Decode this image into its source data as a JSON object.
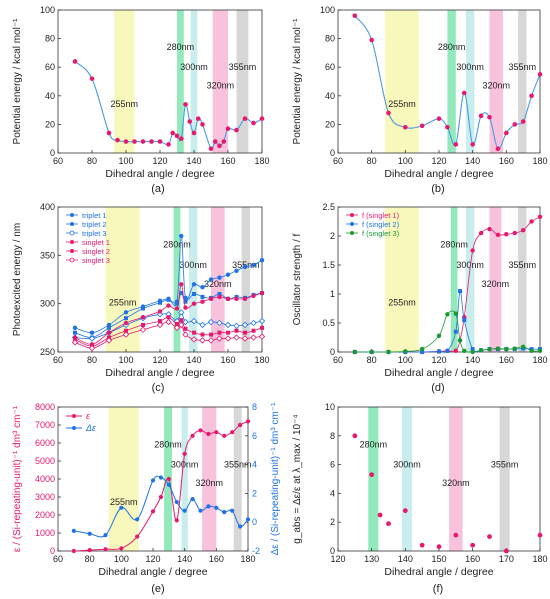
{
  "figure_labels": [
    "(a)",
    "(b)",
    "(c)",
    "(d)",
    "(e)",
    "(f)"
  ],
  "colors": {
    "band_255": "#f7f7b0",
    "band_280": "#7fe6b0",
    "band_300": "#bfe9ea",
    "band_320": "#f7b6d6",
    "band_355": "#d0d0d0",
    "blue": "#1f73e6",
    "magenta": "#e6196e",
    "green": "#1a9933",
    "cyan_curve": "#4a9ae6"
  },
  "chart_data": [
    {
      "id": "a",
      "type": "line",
      "xlabel": "Dihedral angle / degree",
      "ylabel": "Potential energy / kcal mol⁻¹",
      "xlim": [
        60,
        180
      ],
      "ylim": [
        0,
        100
      ],
      "xticks": [
        60,
        80,
        100,
        120,
        140,
        160,
        180
      ],
      "yticks": [
        0,
        20,
        40,
        60,
        80,
        100
      ],
      "bands": [
        {
          "label": "255nm",
          "x0": 93,
          "x1": 105
        },
        {
          "label": "280nm",
          "x0": 130,
          "x1": 134
        },
        {
          "label": "300nm",
          "x0": 138,
          "x1": 142
        },
        {
          "label": "320nm",
          "x0": 151,
          "x1": 160
        },
        {
          "label": "355nm",
          "x0": 165,
          "x1": 172
        }
      ],
      "series": [
        {
          "x": [
            70,
            80,
            90,
            95,
            100,
            105,
            110,
            115,
            120,
            125,
            127.5,
            130,
            132.5,
            135,
            137.5,
            140,
            142.5,
            145,
            150,
            152.5,
            155,
            157.5,
            160,
            165,
            170,
            175,
            180
          ],
          "y": [
            64,
            52,
            14,
            9,
            8,
            8,
            8,
            8,
            8,
            6,
            14,
            12,
            10,
            34,
            22,
            14,
            24,
            20,
            3,
            8,
            5,
            8,
            17,
            16,
            24,
            21,
            24
          ]
        }
      ]
    },
    {
      "id": "b",
      "type": "line",
      "xlabel": "Dihedral angle / degree",
      "ylabel": "Potential energy / kcal mol⁻¹",
      "xlim": [
        60,
        180
      ],
      "ylim": [
        0,
        100
      ],
      "xticks": [
        60,
        80,
        100,
        120,
        140,
        160,
        180
      ],
      "yticks": [
        0,
        20,
        40,
        60,
        80,
        100
      ],
      "bands": [
        {
          "label": "255nm",
          "x0": 88,
          "x1": 108
        },
        {
          "label": "280nm",
          "x0": 125,
          "x1": 130
        },
        {
          "label": "300nm",
          "x0": 136,
          "x1": 141
        },
        {
          "label": "320nm",
          "x0": 150,
          "x1": 158
        },
        {
          "label": "355nm",
          "x0": 167,
          "x1": 172
        }
      ],
      "series": [
        {
          "x": [
            70,
            80,
            90,
            100,
            110,
            120,
            125,
            130,
            135,
            140,
            145,
            150,
            155,
            160,
            165,
            170,
            175,
            180
          ],
          "y": [
            96,
            79,
            28,
            18,
            19,
            24,
            18,
            6,
            42,
            6,
            26,
            25,
            3,
            14,
            20,
            22,
            40,
            55
          ]
        }
      ]
    },
    {
      "id": "c",
      "type": "scatter",
      "xlabel": "Dihedral angle / degree",
      "ylabel": "Photoexcited energy / nm",
      "xlim": [
        60,
        180
      ],
      "ylim": [
        250,
        400
      ],
      "xticks": [
        60,
        80,
        100,
        120,
        140,
        160,
        180
      ],
      "yticks": [
        250,
        300,
        350,
        400
      ],
      "bands": [
        {
          "label": "255nm",
          "x0": 88,
          "x1": 108
        },
        {
          "label": "280nm",
          "x0": 128,
          "x1": 132
        },
        {
          "label": "300nm",
          "x0": 137,
          "x1": 142
        },
        {
          "label": "320nm",
          "x0": 150,
          "x1": 158
        },
        {
          "label": "355nm",
          "x0": 168,
          "x1": 173
        }
      ],
      "legend": "top-left",
      "x": [
        70,
        80,
        90,
        100,
        110,
        120,
        125,
        130,
        132.5,
        135,
        140,
        145,
        150,
        155,
        160,
        165,
        170,
        175,
        180
      ],
      "series": [
        {
          "name": "triplet 1",
          "style": "filled",
          "color": "blue",
          "values": [
            275,
            270,
            278,
            291,
            297,
            303,
            305,
            302,
            370,
            306,
            320,
            317,
            325,
            327,
            330,
            334,
            338,
            340,
            345
          ]
        },
        {
          "name": "triplet 2",
          "style": "filled",
          "color": "blue",
          "values": [
            270,
            265,
            275,
            285,
            295,
            301,
            304,
            300,
            311,
            302,
            310,
            307,
            306,
            310,
            305,
            307,
            306,
            309,
            311
          ]
        },
        {
          "name": "triplet 3",
          "style": "open",
          "color": "blue",
          "values": [
            265,
            264,
            270,
            278,
            285,
            289,
            289,
            282,
            291,
            281,
            282,
            278,
            281,
            280,
            278,
            277,
            278,
            280,
            282
          ]
        },
        {
          "name": "singlet 1",
          "style": "filled",
          "color": "magenta",
          "values": [
            265,
            258,
            270,
            280,
            286,
            292,
            298,
            295,
            320,
            296,
            300,
            302,
            305,
            307,
            305,
            305,
            305,
            308,
            311
          ]
        },
        {
          "name": "singlet 2",
          "style": "filled",
          "color": "magenta",
          "values": [
            263,
            256,
            265,
            272,
            278,
            282,
            286,
            279,
            283,
            274,
            270,
            268,
            268,
            270,
            270,
            272,
            270,
            272,
            275
          ]
        },
        {
          "name": "singlet 3",
          "style": "open",
          "color": "magenta",
          "values": [
            260,
            254,
            262,
            268,
            273,
            278,
            281,
            275,
            278,
            268,
            263,
            262,
            262,
            264,
            264,
            265,
            264,
            265,
            266
          ]
        }
      ]
    },
    {
      "id": "d",
      "type": "line",
      "xlabel": "Dihedral angle / degree",
      "ylabel": "Oscillator strength / f",
      "xlim": [
        60,
        180
      ],
      "ylim": [
        0,
        2.5
      ],
      "xticks": [
        60,
        80,
        100,
        120,
        140,
        160,
        180
      ],
      "yticks": [
        0,
        0.5,
        1,
        1.5,
        2,
        2.5
      ],
      "bands": [
        {
          "label": "255nm",
          "x0": 88,
          "x1": 108
        },
        {
          "label": "280nm",
          "x0": 127,
          "x1": 131
        },
        {
          "label": "300nm",
          "x0": 136,
          "x1": 141
        },
        {
          "label": "320nm",
          "x0": 150,
          "x1": 157
        },
        {
          "label": "355nm",
          "x0": 167,
          "x1": 172
        }
      ],
      "legend": "top-left",
      "x": [
        70,
        80,
        90,
        100,
        110,
        120,
        125,
        130,
        132.5,
        135,
        140,
        145,
        150,
        155,
        160,
        165,
        170,
        175,
        180
      ],
      "series": [
        {
          "name": "f (singlet 1)",
          "color": "magenta",
          "values": [
            0,
            0,
            0,
            0,
            0,
            0.01,
            0.02,
            0.02,
            0.2,
            0.6,
            1.75,
            2.05,
            2.12,
            2.02,
            2.03,
            2.05,
            2.1,
            2.25,
            2.33
          ]
        },
        {
          "name": "f (singlet 2)",
          "color": "blue",
          "values": [
            0,
            0,
            0,
            0,
            0,
            0.01,
            0.02,
            0.35,
            1.05,
            0.55,
            0.05,
            0.03,
            0.05,
            0.05,
            0.05,
            0.05,
            0.06,
            0.05,
            0.05
          ]
        },
        {
          "name": "f (singlet 3)",
          "color": "green",
          "values": [
            0,
            0,
            0,
            0.01,
            0.05,
            0.28,
            0.65,
            0.66,
            0.2,
            0.02,
            0,
            0.03,
            0.05,
            0.06,
            0.05,
            0.06,
            0.09,
            0.02,
            0.02
          ]
        }
      ]
    },
    {
      "id": "e",
      "type": "line",
      "xlabel": "Dihedral angle / degree",
      "ylabel": "ε / (Si-repeating-unit)⁻¹ dm³ cm⁻¹",
      "ylabel_right": "Δε / (Si-repeating-unit)⁻¹ dm³ cm⁻¹",
      "xlim": [
        60,
        180
      ],
      "ylim": [
        0,
        8000
      ],
      "ylim_right": [
        -2,
        8
      ],
      "xticks": [
        60,
        80,
        100,
        120,
        140,
        160,
        180
      ],
      "yticks": [
        0,
        1000,
        2000,
        3000,
        4000,
        5000,
        6000,
        7000,
        8000
      ],
      "yticks_right": [
        -2,
        0,
        2,
        4,
        6,
        8
      ],
      "bands": [
        {
          "label": "255nm",
          "x0": 92,
          "x1": 111
        },
        {
          "label": "280nm",
          "x0": 127,
          "x1": 132
        },
        {
          "label": "300nm",
          "x0": 138,
          "x1": 142
        },
        {
          "label": "320nm",
          "x0": 151,
          "x1": 160
        },
        {
          "label": "355nm",
          "x0": 171,
          "x1": 176
        }
      ],
      "legend": "top-left",
      "x": [
        70,
        80,
        90,
        100,
        110,
        120,
        125,
        130,
        135,
        140,
        145,
        150,
        155,
        160,
        165,
        170,
        175,
        180
      ],
      "series": [
        {
          "name": "ε",
          "axis": "left",
          "color": "magenta",
          "values": [
            0,
            50,
            100,
            150,
            800,
            2200,
            3000,
            4000,
            1700,
            5400,
            6400,
            6700,
            6500,
            6600,
            6400,
            6600,
            7000,
            7200
          ]
        },
        {
          "name": "Δε",
          "axis": "right",
          "color": "blue",
          "values": [
            -0.6,
            -0.8,
            -0.9,
            1.0,
            0.2,
            2.9,
            3.1,
            2.6,
            1.4,
            0.8,
            1.6,
            0.8,
            1.1,
            1.0,
            0.7,
            0.8,
            -0.3,
            0.2
          ]
        }
      ]
    },
    {
      "id": "f",
      "type": "scatter",
      "xlabel": "Dihedral angle / degree",
      "ylabel": "g_abs = Δε/ε at λ_max / 10⁻⁴",
      "xlim": [
        120,
        180
      ],
      "ylim": [
        0,
        10
      ],
      "xticks": [
        120,
        130,
        140,
        150,
        160,
        170,
        180
      ],
      "yticks": [
        0,
        2,
        4,
        6,
        8,
        10
      ],
      "bands": [
        {
          "label": "280nm",
          "x0": 129,
          "x1": 132
        },
        {
          "label": "300nm",
          "x0": 139,
          "x1": 142
        },
        {
          "label": "320nm",
          "x0": 153,
          "x1": 157
        },
        {
          "label": "355nm",
          "x0": 168,
          "x1": 171
        }
      ],
      "series": [
        {
          "x": [
            125,
            130,
            132.5,
            135,
            140,
            145,
            150,
            155,
            160,
            165,
            170,
            180
          ],
          "y": [
            8.0,
            5.3,
            2.5,
            1.9,
            2.8,
            0.4,
            0.3,
            1.1,
            0.4,
            1.0,
            0.0,
            1.1
          ]
        }
      ]
    }
  ]
}
